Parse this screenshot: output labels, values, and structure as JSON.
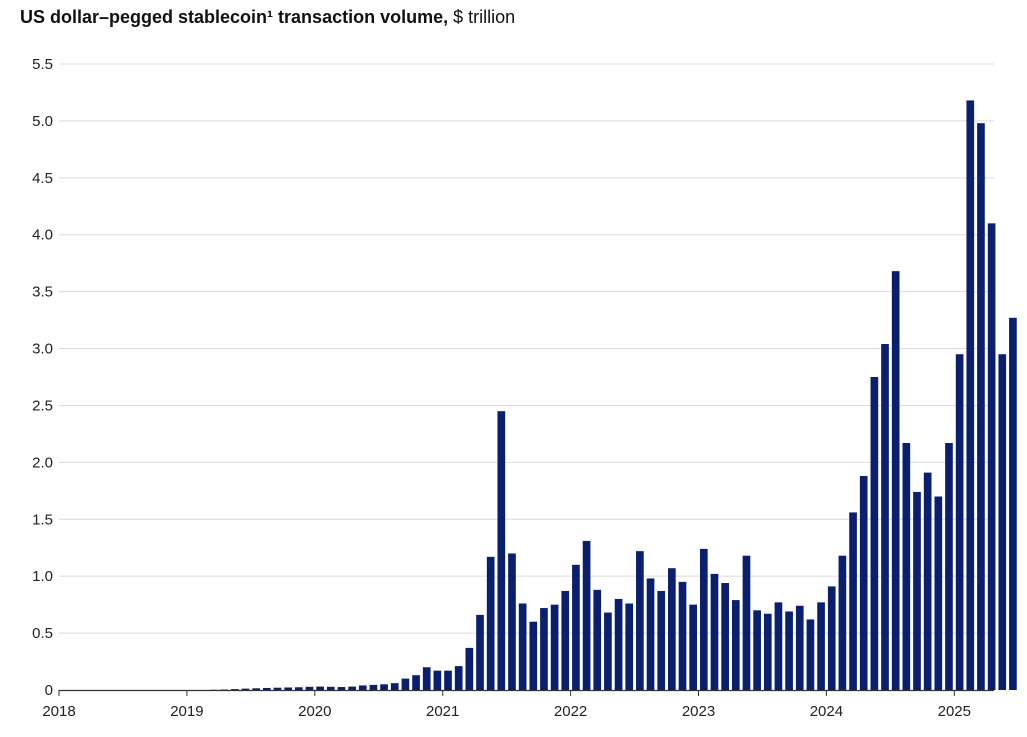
{
  "chart_data": {
    "type": "bar",
    "title": "US dollar–pegged stablecoin¹ transaction volume,",
    "unit": "$ trillion",
    "xlabel": "",
    "ylabel": "",
    "ylim": [
      0,
      5.5
    ],
    "yticks": [
      "0",
      "0.5",
      "1.0",
      "1.5",
      "2.0",
      "2.5",
      "3.0",
      "3.5",
      "4.0",
      "4.5",
      "5.0",
      "5.5"
    ],
    "xticks": [
      "2018",
      "2019",
      "2020",
      "2021",
      "2022",
      "2023",
      "2024",
      "2025"
    ],
    "grid": "horizontal",
    "bar_color": "#0a1f6e",
    "period": "monthly, Jan 2018 – May 2025",
    "values": [
      0,
      0,
      0,
      0,
      0,
      0,
      0,
      0,
      0,
      0,
      0,
      0,
      0,
      0,
      0.002,
      0.004,
      0.008,
      0.012,
      0.015,
      0.018,
      0.02,
      0.022,
      0.024,
      0.028,
      0.03,
      0.028,
      0.026,
      0.03,
      0.04,
      0.045,
      0.05,
      0.06,
      0.1,
      0.13,
      0.2,
      0.17,
      0.17,
      0.21,
      0.37,
      0.66,
      1.17,
      2.45,
      1.2,
      0.76,
      0.6,
      0.72,
      0.75,
      0.87,
      1.1,
      1.31,
      0.88,
      0.68,
      0.8,
      0.76,
      1.22,
      0.98,
      0.87,
      1.07,
      0.95,
      0.75,
      1.24,
      1.02,
      0.94,
      0.79,
      1.18,
      0.7,
      0.67,
      0.77,
      0.69,
      0.74,
      0.62,
      0.77,
      0.91,
      1.18,
      1.56,
      1.88,
      2.75,
      3.04,
      3.68,
      2.17,
      1.74,
      1.91,
      1.7,
      2.17,
      2.95,
      5.18,
      4.98,
      4.1,
      2.95,
      3.27
    ]
  }
}
